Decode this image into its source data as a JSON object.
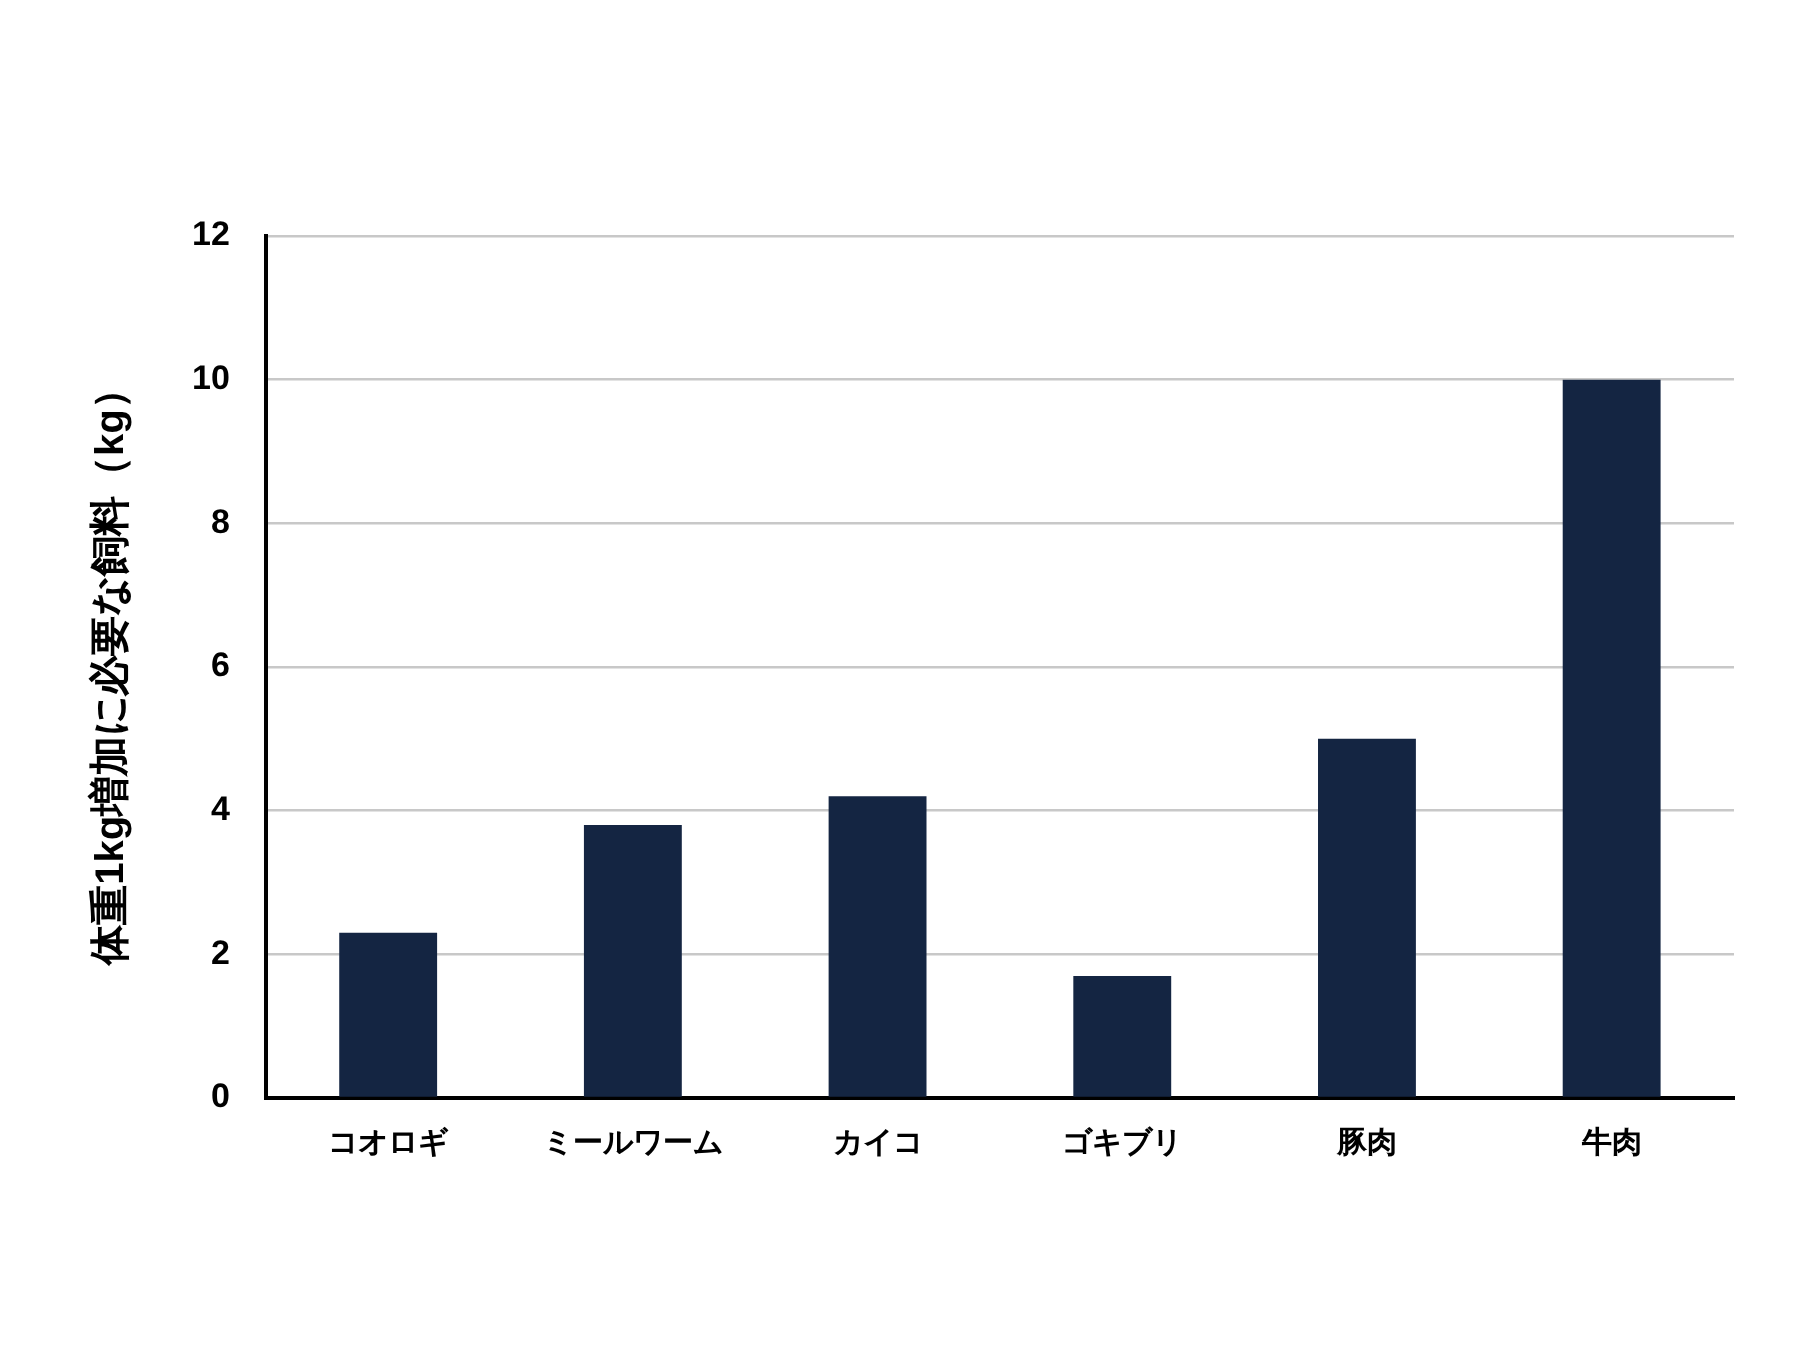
{
  "chart_data": {
    "type": "bar",
    "ylabel": "体重1kg増加に必要な飼料（kg）",
    "categories": [
      "コオロギ",
      "ミールワーム",
      "カイコ",
      "ゴキブリ",
      "豚肉",
      "牛肉"
    ],
    "values": [
      2.3,
      3.8,
      4.2,
      1.7,
      5,
      10
    ],
    "color": "#142542",
    "ylim": [
      0,
      12
    ],
    "yticks": [
      0,
      2,
      4,
      6,
      8,
      10,
      12
    ],
    "grid": "y"
  }
}
